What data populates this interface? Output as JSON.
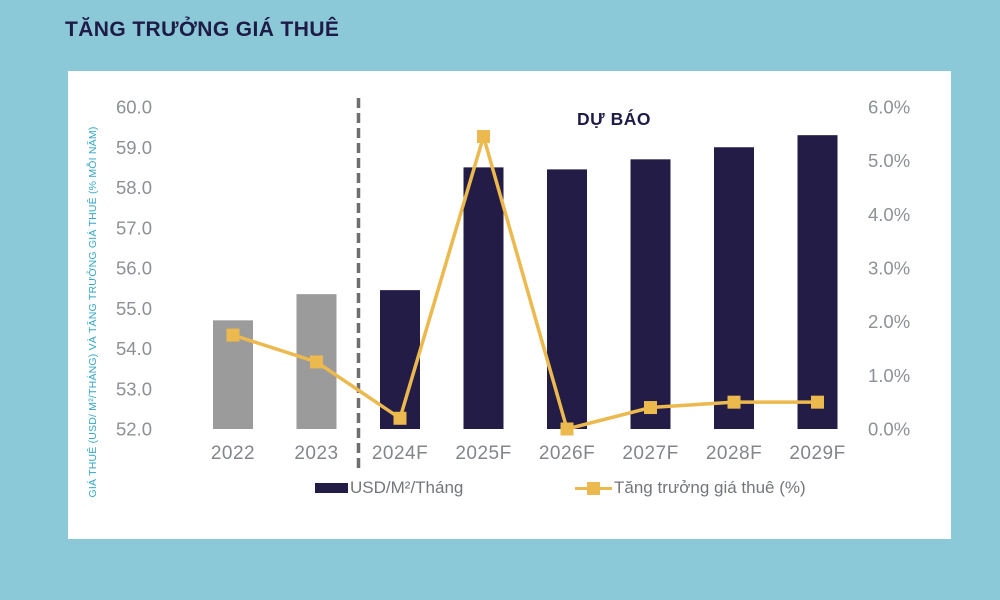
{
  "title": "TĂNG TRƯỞNG GIÁ THUÊ",
  "colors": {
    "background": "#8cc9d8",
    "panel": "#ffffff",
    "navy": "#221c47",
    "title_navy": "#1f1b47",
    "gray_bar": "#9b9b9b",
    "accent_yellow": "#ecb94e",
    "tick_text": "#8d9196",
    "x_label_text": "#82868b",
    "legend_text": "#73767a",
    "axis_title_teal": "#35a7c5",
    "dashed_line": "#6e6e6e"
  },
  "chart_data": {
    "type": "bar",
    "subtype": "combo-bar-line-dual-axis",
    "categories": [
      "2022",
      "2023",
      "2024F",
      "2025F",
      "2026F",
      "2027F",
      "2028F",
      "2029F"
    ],
    "series": [
      {
        "name": "USD/M²/Tháng",
        "type": "bar",
        "axis": "left",
        "values": [
          54.7,
          55.35,
          55.45,
          58.5,
          58.45,
          58.7,
          59.0,
          59.3
        ],
        "forecast_start_index": 2,
        "historical_color": "#9b9b9b",
        "forecast_color": "#221c47"
      },
      {
        "name": "Tăng trưởng giá thuê (%)",
        "type": "line",
        "axis": "right",
        "values": [
          1.75,
          1.25,
          0.2,
          5.45,
          0.0,
          0.4,
          0.5,
          0.5
        ],
        "color": "#ecb94e",
        "marker": "square"
      }
    ],
    "left_axis": {
      "title": "GIÁ THUÊ (USD/ M²/THÁNG) VÀ TĂNG TRƯỞNG GIÁ THUÊ (% MỖI NĂM)",
      "min": 52.0,
      "max": 60.0,
      "step": 1.0,
      "ticks": [
        "60.0",
        "59.0",
        "58.0",
        "57.0",
        "56.0",
        "55.0",
        "54.0",
        "53.0",
        "52.0"
      ]
    },
    "right_axis": {
      "min": 0.0,
      "max": 6.0,
      "step": 1.0,
      "ticks": [
        "6.0%",
        "5.0%",
        "4.0%",
        "3.0%",
        "2.0%",
        "1.0%",
        "0.0%"
      ]
    },
    "annotations": {
      "forecast_label": "DỰ BÁO",
      "forecast_divider_after": "2023"
    },
    "legend": [
      {
        "label": "USD/M²/Tháng",
        "swatch": "bar"
      },
      {
        "label": "Tăng trưởng giá thuê (%)",
        "swatch": "line-marker"
      }
    ],
    "grid": false,
    "legend_position": "bottom"
  }
}
